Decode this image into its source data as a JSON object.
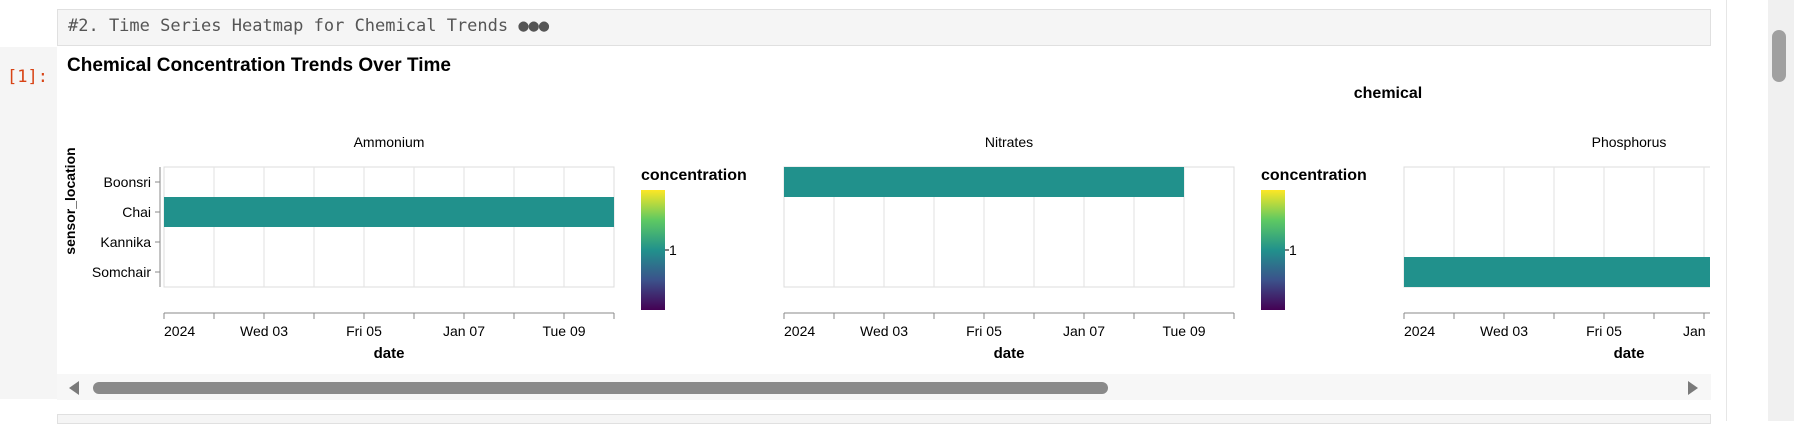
{
  "markdown_cell": {
    "text": "#2. Time Series Heatmap for Chemical Trends",
    "more_label": "●●●"
  },
  "output_cell": {
    "prompt": "[1]:"
  },
  "chart_data": {
    "type": "heatmap",
    "title": "Chemical Concentration Trends Over Time",
    "facet_title": "chemical",
    "xlabel": "date",
    "ylabel": "sensor_location",
    "rows": [
      "Boonsri",
      "Chai",
      "Kannika",
      "Somchair"
    ],
    "x_ticks": [
      "2024",
      "Wed 03",
      "Fri 05",
      "Jan 07",
      "Tue 09"
    ],
    "x_range": [
      "2024-01-01",
      "2024-01-10"
    ],
    "legend": {
      "title": "concentration",
      "value": "1",
      "colors": [
        "#fde725",
        "#35b779",
        "#21918c",
        "#31688e",
        "#440154"
      ]
    },
    "cell_color": "#21918c",
    "facets": [
      {
        "name": "Ammonium",
        "cells": [
          {
            "row": "Chai",
            "start": "2024-01-01",
            "end": "2024-01-10"
          }
        ]
      },
      {
        "name": "Nitrates",
        "cells": [
          {
            "row": "Boonsri",
            "start": "2024-01-01",
            "end": "2024-01-09"
          }
        ]
      },
      {
        "name": "Phosphorus",
        "cells": [
          {
            "row": "Somchair",
            "start": "2024-01-01",
            "end": "2024-01-10"
          }
        ]
      }
    ]
  }
}
